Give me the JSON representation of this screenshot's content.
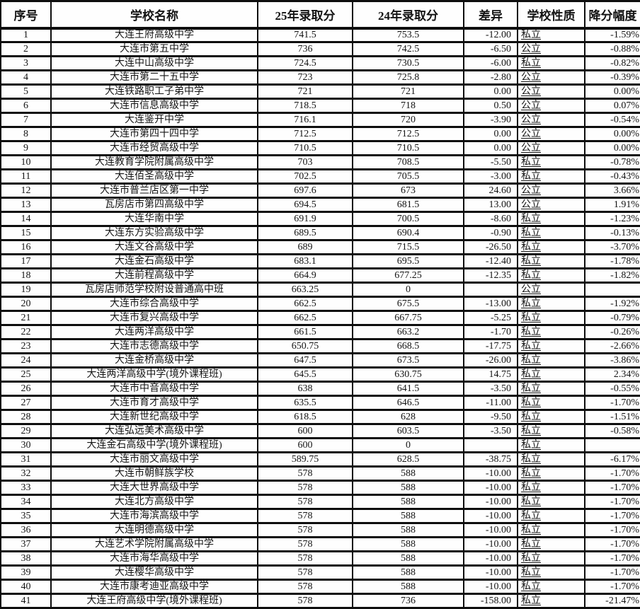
{
  "colors": {
    "border": "#0e0e0e",
    "background": "#fefefe",
    "text": "#141414"
  },
  "table": {
    "columns": [
      {
        "key": "index",
        "label": "序号"
      },
      {
        "key": "name",
        "label": "学校名称"
      },
      {
        "key": "score25",
        "label": "25年录取分"
      },
      {
        "key": "score24",
        "label": "24年录取分"
      },
      {
        "key": "diff",
        "label": "差异"
      },
      {
        "key": "type",
        "label": "学校性质"
      },
      {
        "key": "pct",
        "label": "降分幅度"
      }
    ],
    "rows": [
      [
        "1",
        "大连王府高级中学",
        "741.5",
        "753.5",
        "-12.00",
        "私立",
        "-1.59%"
      ],
      [
        "2",
        "大连市第五中学",
        "736",
        "742.5",
        "-6.50",
        "公立",
        "-0.88%"
      ],
      [
        "3",
        "大连中山高级中学",
        "724.5",
        "730.5",
        "-6.00",
        "私立",
        "-0.82%"
      ],
      [
        "4",
        "大连市第二十五中学",
        "723",
        "725.8",
        "-2.80",
        "公立",
        "-0.39%"
      ],
      [
        "5",
        "大连铁路职工子弟中学",
        "721",
        "721",
        "0.00",
        "公立",
        "0.00%"
      ],
      [
        "6",
        "大连市信息高级中学",
        "718.5",
        "718",
        "0.50",
        "公立",
        "0.07%"
      ],
      [
        "7",
        "大连鉴开中学",
        "716.1",
        "720",
        "-3.90",
        "公立",
        "-0.54%"
      ],
      [
        "8",
        "大连市第四十四中学",
        "712.5",
        "712.5",
        "0.00",
        "公立",
        "0.00%"
      ],
      [
        "9",
        "大连市经贸高级中学",
        "710.5",
        "710.5",
        "0.00",
        "公立",
        "0.00%"
      ],
      [
        "10",
        "大连教育学院附属高级中学",
        "703",
        "708.5",
        "-5.50",
        "私立",
        "-0.78%"
      ],
      [
        "11",
        "大连佰圣高级中学",
        "702.5",
        "705.5",
        "-3.00",
        "私立",
        "-0.43%"
      ],
      [
        "12",
        "大连市普兰店区第一中学",
        "697.6",
        "673",
        "24.60",
        "公立",
        "3.66%"
      ],
      [
        "13",
        "瓦房店市第四高级中学",
        "694.5",
        "681.5",
        "13.00",
        "公立",
        "1.91%"
      ],
      [
        "14",
        "大连华南中学",
        "691.9",
        "700.5",
        "-8.60",
        "私立",
        "-1.23%"
      ],
      [
        "15",
        "大连东方实验高级中学",
        "689.5",
        "690.4",
        "-0.90",
        "私立",
        "-0.13%"
      ],
      [
        "16",
        "大连文谷高级中学",
        "689",
        "715.5",
        "-26.50",
        "私立",
        "-3.70%"
      ],
      [
        "17",
        "大连金石高级中学",
        "683.1",
        "695.5",
        "-12.40",
        "私立",
        "-1.78%"
      ],
      [
        "18",
        "大连前程高级中学",
        "664.9",
        "677.25",
        "-12.35",
        "私立",
        "-1.82%"
      ],
      [
        "19",
        "瓦房店师范学校附设普通高中班",
        "663.25",
        "0",
        "",
        "公立",
        ""
      ],
      [
        "20",
        "大连市综合高级中学",
        "662.5",
        "675.5",
        "-13.00",
        "私立",
        "-1.92%"
      ],
      [
        "21",
        "大连市复兴高级中学",
        "662.5",
        "667.75",
        "-5.25",
        "私立",
        "-0.79%"
      ],
      [
        "22",
        "大连两洋高级中学",
        "661.5",
        "663.2",
        "-1.70",
        "私立",
        "-0.26%"
      ],
      [
        "23",
        "大连市志德高级中学",
        "650.75",
        "668.5",
        "-17.75",
        "私立",
        "-2.66%"
      ],
      [
        "24",
        "大连金桥高级中学",
        "647.5",
        "673.5",
        "-26.00",
        "私立",
        "-3.86%"
      ],
      [
        "25",
        "大连两洋高级中学(境外课程班)",
        "645.5",
        "630.75",
        "14.75",
        "私立",
        "2.34%"
      ],
      [
        "26",
        "大连市中音高级中学",
        "638",
        "641.5",
        "-3.50",
        "私立",
        "-0.55%"
      ],
      [
        "27",
        "大连市育才高级中学",
        "635.5",
        "646.5",
        "-11.00",
        "私立",
        "-1.70%"
      ],
      [
        "28",
        "大连新世纪高级中学",
        "618.5",
        "628",
        "-9.50",
        "私立",
        "-1.51%"
      ],
      [
        "29",
        "大连弘远美术高级中学",
        "600",
        "603.5",
        "-3.50",
        "私立",
        "-0.58%"
      ],
      [
        "30",
        "大连金石高级中学(境外课程班)",
        "600",
        "0",
        "",
        "私立",
        ""
      ],
      [
        "31",
        "大连市丽文高级中学",
        "589.75",
        "628.5",
        "-38.75",
        "私立",
        "-6.17%"
      ],
      [
        "32",
        "大连市朝鲜族学校",
        "578",
        "588",
        "-10.00",
        "私立",
        "-1.70%"
      ],
      [
        "33",
        "大连大世界高级中学",
        "578",
        "588",
        "-10.00",
        "私立",
        "-1.70%"
      ],
      [
        "34",
        "大连北方高级中学",
        "578",
        "588",
        "-10.00",
        "私立",
        "-1.70%"
      ],
      [
        "35",
        "大连市海滨高级中学",
        "578",
        "588",
        "-10.00",
        "私立",
        "-1.70%"
      ],
      [
        "36",
        "大连明德高级中学",
        "578",
        "588",
        "-10.00",
        "私立",
        "-1.70%"
      ],
      [
        "37",
        "大连艺术学院附属高级中学",
        "578",
        "588",
        "-10.00",
        "私立",
        "-1.70%"
      ],
      [
        "38",
        "大连市海华高级中学",
        "578",
        "588",
        "-10.00",
        "私立",
        "-1.70%"
      ],
      [
        "39",
        "大连樱华高级中学",
        "578",
        "588",
        "-10.00",
        "私立",
        "-1.70%"
      ],
      [
        "40",
        "大连市康考迪亚高级中学",
        "578",
        "588",
        "-10.00",
        "私立",
        "-1.70%"
      ],
      [
        "41",
        "大连王府高级中学(境外课程班)",
        "578",
        "736",
        "-158.00",
        "私立",
        "-21.47%"
      ]
    ]
  }
}
